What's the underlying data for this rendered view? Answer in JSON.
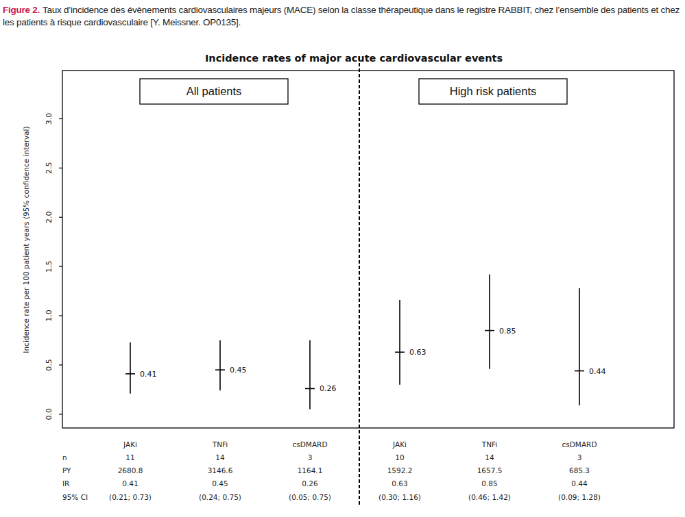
{
  "chart_data": {
    "type": "errorbar",
    "caption_label": "Figure 2.",
    "caption": "Taux d’incidence des évènements cardiovasculaires majeurs (MACE) selon la classe thérapeutique dans le registre RABBIT, chez l’ensemble des patients et chez les patients à risque cardiovasculaire [Y. Meissner. OP0135].",
    "title": "Incidence rates of major acute cardiovascular events",
    "y_label": "Incidence rate per 100 patient years (95% confidence interval)",
    "ylim": [
      -0.14,
      3.49
    ],
    "yticks": [
      {
        "value": 0,
        "label": "0.0"
      },
      0.5,
      {
        "value": 1,
        "label": "1.0"
      },
      1.5,
      {
        "value": 2,
        "label": "2.0"
      },
      2.5,
      {
        "value": 3,
        "label": "3.0"
      }
    ],
    "data_labels": true,
    "table_rows": [
      "n",
      "PY",
      "IR",
      "95% CI"
    ],
    "panels": [
      {
        "title": "All patients",
        "categories": [
          "JAKi",
          "TNFi",
          "csDMARD"
        ],
        "n": [
          11,
          14,
          3
        ],
        "py": [
          2680.8,
          3146.6,
          1164.1
        ],
        "values": [
          0.41,
          0.45,
          0.26
        ],
        "ci_low": [
          0.21,
          0.24,
          0.05
        ],
        "ci_high": [
          0.73,
          0.75,
          0.75
        ],
        "ci_labels": [
          "(0.21; 0.73)",
          "(0.24; 0.75)",
          "(0.05; 0.75)"
        ]
      },
      {
        "title": "High risk patients",
        "categories": [
          "JAKi",
          "TNFi",
          "csDMARD"
        ],
        "n": [
          10,
          14,
          3
        ],
        "py": [
          1592.2,
          1657.5,
          685.3
        ],
        "values": [
          0.63,
          0.85,
          0.44
        ],
        "ci_low": [
          0.3,
          0.46,
          0.09
        ],
        "ci_high": [
          1.16,
          1.42,
          1.28
        ],
        "ci_labels": [
          "(0.30; 1.16)",
          "(0.46; 1.42)",
          "(0.09; 1.28)"
        ]
      }
    ]
  }
}
